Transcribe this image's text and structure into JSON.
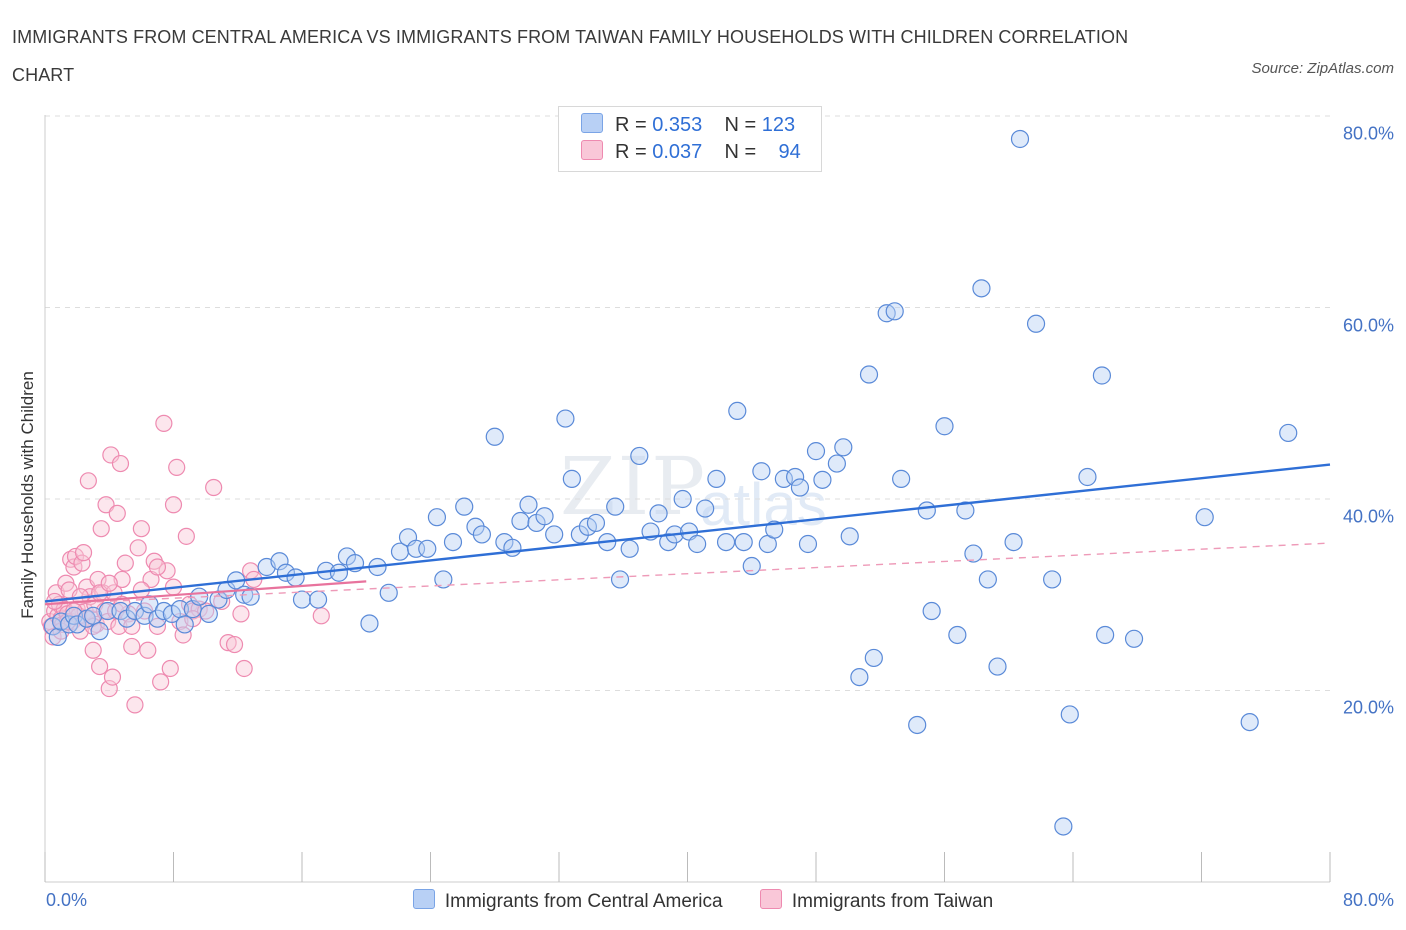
{
  "title": "IMMIGRANTS FROM CENTRAL AMERICA VS IMMIGRANTS FROM TAIWAN FAMILY HOUSEHOLDS WITH CHILDREN CORRELATION CHART",
  "source": "Source: ZipAtlas.com",
  "watermark": {
    "a": "ZIP",
    "b": "atlas"
  },
  "legend": {
    "r_label": "R = ",
    "n_label": "N = ",
    "blue": {
      "r": "0.353",
      "n": "123"
    },
    "pink": {
      "r": "0.037",
      "n": "94"
    }
  },
  "colors": {
    "blue": "#4472c4",
    "blue_fill": "#b8d0f5",
    "pink": "#e8739d",
    "pink_fill": "#f9c7d8"
  },
  "chart_data": {
    "type": "scatter",
    "title": "IMMIGRANTS FROM CENTRAL AMERICA VS IMMIGRANTS FROM TAIWAN FAMILY HOUSEHOLDS WITH CHILDREN CORRELATION CHART",
    "xlabel": "",
    "ylabel": "Family Households with Children",
    "xlim": [
      0,
      80
    ],
    "ylim": [
      0,
      80
    ],
    "x_tick_labels": [
      "0.0%",
      "80.0%"
    ],
    "y_ticks": [
      20,
      40,
      60,
      80
    ],
    "y_tick_labels": [
      "20.0%",
      "40.0%",
      "60.0%",
      "80.0%"
    ],
    "grid": true,
    "legend_position": "top-center",
    "series": [
      {
        "name": "Immigrants from Central America",
        "color": "#4472c4",
        "trend": {
          "x": [
            0,
            80
          ],
          "y": [
            29.3,
            43.6
          ]
        },
        "points": [
          [
            0.5,
            26.7
          ],
          [
            0.8,
            25.6
          ],
          [
            1.0,
            27.2
          ],
          [
            1.5,
            26.9
          ],
          [
            1.8,
            27.8
          ],
          [
            2.0,
            26.9
          ],
          [
            2.6,
            27.5
          ],
          [
            3.0,
            27.8
          ],
          [
            3.4,
            26.2
          ],
          [
            3.9,
            28.3
          ],
          [
            4.7,
            28.3
          ],
          [
            5.1,
            27.5
          ],
          [
            5.6,
            28.3
          ],
          [
            6.2,
            27.8
          ],
          [
            6.5,
            29.0
          ],
          [
            7.0,
            27.5
          ],
          [
            7.4,
            28.3
          ],
          [
            7.9,
            28.0
          ],
          [
            8.4,
            28.5
          ],
          [
            8.7,
            26.9
          ],
          [
            9.2,
            28.5
          ],
          [
            9.6,
            29.8
          ],
          [
            10.2,
            28.0
          ],
          [
            10.8,
            29.5
          ],
          [
            11.3,
            30.5
          ],
          [
            11.9,
            31.5
          ],
          [
            12.4,
            30.0
          ],
          [
            12.8,
            29.8
          ],
          [
            13.8,
            32.9
          ],
          [
            14.6,
            33.5
          ],
          [
            15.0,
            32.3
          ],
          [
            15.6,
            31.8
          ],
          [
            16.0,
            29.5
          ],
          [
            17.0,
            29.5
          ],
          [
            17.5,
            32.5
          ],
          [
            18.3,
            32.3
          ],
          [
            18.8,
            34.0
          ],
          [
            19.3,
            33.3
          ],
          [
            20.2,
            27.0
          ],
          [
            20.7,
            32.9
          ],
          [
            21.4,
            30.2
          ],
          [
            22.1,
            34.5
          ],
          [
            22.6,
            36.0
          ],
          [
            23.1,
            34.8
          ],
          [
            23.8,
            34.8
          ],
          [
            24.4,
            38.1
          ],
          [
            24.8,
            31.6
          ],
          [
            25.4,
            35.5
          ],
          [
            26.1,
            39.2
          ],
          [
            26.8,
            37.1
          ],
          [
            27.2,
            36.3
          ],
          [
            28.0,
            46.5
          ],
          [
            28.6,
            35.5
          ],
          [
            29.1,
            34.9
          ],
          [
            29.6,
            37.7
          ],
          [
            30.1,
            39.4
          ],
          [
            30.6,
            37.5
          ],
          [
            31.1,
            38.2
          ],
          [
            31.7,
            36.3
          ],
          [
            32.4,
            48.4
          ],
          [
            32.8,
            42.1
          ],
          [
            33.3,
            36.3
          ],
          [
            33.8,
            37.1
          ],
          [
            34.3,
            37.5
          ],
          [
            35.0,
            35.5
          ],
          [
            35.5,
            39.2
          ],
          [
            35.8,
            31.6
          ],
          [
            36.4,
            34.8
          ],
          [
            37.0,
            44.5
          ],
          [
            37.7,
            36.6
          ],
          [
            38.2,
            38.5
          ],
          [
            38.8,
            35.5
          ],
          [
            39.2,
            36.3
          ],
          [
            39.7,
            40.0
          ],
          [
            40.1,
            36.6
          ],
          [
            40.6,
            35.3
          ],
          [
            41.1,
            39.0
          ],
          [
            41.8,
            42.1
          ],
          [
            42.4,
            35.5
          ],
          [
            43.1,
            49.2
          ],
          [
            43.5,
            35.5
          ],
          [
            44.0,
            33.0
          ],
          [
            44.6,
            42.9
          ],
          [
            45.0,
            35.3
          ],
          [
            45.4,
            36.8
          ],
          [
            46.0,
            42.1
          ],
          [
            46.7,
            42.3
          ],
          [
            47.0,
            41.2
          ],
          [
            47.5,
            35.3
          ],
          [
            48.0,
            45.0
          ],
          [
            48.4,
            42.0
          ],
          [
            49.3,
            43.7
          ],
          [
            49.7,
            45.4
          ],
          [
            50.1,
            36.1
          ],
          [
            50.7,
            21.4
          ],
          [
            51.3,
            53.0
          ],
          [
            51.6,
            23.4
          ],
          [
            52.4,
            59.4
          ],
          [
            52.9,
            59.6
          ],
          [
            53.3,
            42.1
          ],
          [
            54.3,
            16.4
          ],
          [
            54.9,
            38.8
          ],
          [
            55.2,
            28.3
          ],
          [
            56.0,
            47.6
          ],
          [
            56.8,
            25.8
          ],
          [
            57.8,
            34.3
          ],
          [
            58.3,
            62.0
          ],
          [
            58.7,
            31.6
          ],
          [
            59.3,
            22.5
          ],
          [
            60.7,
            77.6
          ],
          [
            61.7,
            58.3
          ],
          [
            62.7,
            31.6
          ],
          [
            63.8,
            17.5
          ],
          [
            64.9,
            42.3
          ],
          [
            65.8,
            52.9
          ],
          [
            66.0,
            25.8
          ],
          [
            67.8,
            25.4
          ],
          [
            72.2,
            38.1
          ],
          [
            75.0,
            16.7
          ],
          [
            77.4,
            46.9
          ],
          [
            57.3,
            38.8
          ],
          [
            63.4,
            5.8
          ],
          [
            60.3,
            35.5
          ]
        ]
      },
      {
        "name": "Immigrants from Taiwan",
        "color": "#e8739d",
        "trend": {
          "x": [
            0,
            20
          ],
          "y": [
            29.0,
            31.4
          ]
        },
        "trend_dashed": {
          "x": [
            0,
            80
          ],
          "y": [
            29.0,
            35.4
          ]
        },
        "points": [
          [
            0.3,
            27.2
          ],
          [
            0.4,
            26.7
          ],
          [
            0.5,
            25.6
          ],
          [
            0.6,
            28.3
          ],
          [
            0.7,
            30.2
          ],
          [
            0.8,
            27.8
          ],
          [
            0.9,
            29.0
          ],
          [
            1.0,
            27.5
          ],
          [
            1.1,
            26.9
          ],
          [
            1.2,
            28.5
          ],
          [
            1.3,
            31.2
          ],
          [
            1.4,
            28.0
          ],
          [
            1.5,
            30.5
          ],
          [
            1.6,
            33.7
          ],
          [
            1.7,
            27.2
          ],
          [
            1.8,
            32.9
          ],
          [
            1.9,
            34.0
          ],
          [
            2.0,
            28.5
          ],
          [
            2.1,
            27.8
          ],
          [
            2.2,
            26.2
          ],
          [
            2.3,
            33.3
          ],
          [
            2.4,
            34.4
          ],
          [
            2.5,
            28.3
          ],
          [
            2.6,
            30.8
          ],
          [
            2.7,
            41.9
          ],
          [
            2.8,
            29.8
          ],
          [
            2.9,
            27.5
          ],
          [
            3.0,
            24.2
          ],
          [
            3.1,
            29.0
          ],
          [
            3.2,
            26.9
          ],
          [
            3.3,
            31.6
          ],
          [
            3.4,
            22.5
          ],
          [
            3.5,
            36.9
          ],
          [
            3.6,
            30.2
          ],
          [
            3.7,
            28.3
          ],
          [
            3.8,
            39.4
          ],
          [
            3.9,
            27.2
          ],
          [
            4.0,
            20.2
          ],
          [
            4.1,
            44.6
          ],
          [
            4.2,
            21.4
          ],
          [
            4.3,
            30.2
          ],
          [
            4.4,
            28.3
          ],
          [
            4.5,
            38.5
          ],
          [
            4.6,
            26.7
          ],
          [
            4.7,
            43.7
          ],
          [
            4.8,
            31.6
          ],
          [
            5.0,
            33.3
          ],
          [
            5.2,
            28.0
          ],
          [
            5.4,
            24.6
          ],
          [
            5.6,
            18.5
          ],
          [
            5.8,
            34.9
          ],
          [
            6.0,
            36.9
          ],
          [
            6.2,
            28.3
          ],
          [
            6.4,
            24.2
          ],
          [
            6.6,
            31.6
          ],
          [
            6.8,
            33.5
          ],
          [
            7.0,
            26.7
          ],
          [
            7.2,
            20.9
          ],
          [
            7.4,
            47.9
          ],
          [
            7.6,
            32.5
          ],
          [
            7.8,
            22.3
          ],
          [
            8.0,
            39.4
          ],
          [
            8.2,
            43.3
          ],
          [
            8.4,
            27.2
          ],
          [
            8.6,
            25.8
          ],
          [
            8.8,
            36.1
          ],
          [
            9.0,
            29.0
          ],
          [
            9.2,
            28.3
          ],
          [
            9.6,
            28.5
          ],
          [
            10.0,
            28.3
          ],
          [
            10.5,
            41.2
          ],
          [
            11.4,
            25.0
          ],
          [
            11.8,
            24.8
          ],
          [
            12.2,
            28.0
          ],
          [
            12.4,
            22.3
          ],
          [
            12.8,
            32.5
          ],
          [
            13.0,
            31.6
          ],
          [
            17.2,
            27.8
          ],
          [
            0.6,
            29.3
          ],
          [
            1.0,
            26.2
          ],
          [
            1.4,
            27.2
          ],
          [
            1.8,
            28.3
          ],
          [
            2.2,
            29.8
          ],
          [
            2.6,
            27.5
          ],
          [
            3.0,
            26.7
          ],
          [
            3.4,
            30.2
          ],
          [
            4.0,
            31.2
          ],
          [
            4.8,
            29.0
          ],
          [
            5.4,
            26.7
          ],
          [
            6.0,
            30.5
          ],
          [
            7.0,
            32.9
          ],
          [
            8.0,
            30.8
          ],
          [
            9.2,
            27.5
          ],
          [
            11.0,
            29.3
          ]
        ]
      }
    ]
  }
}
